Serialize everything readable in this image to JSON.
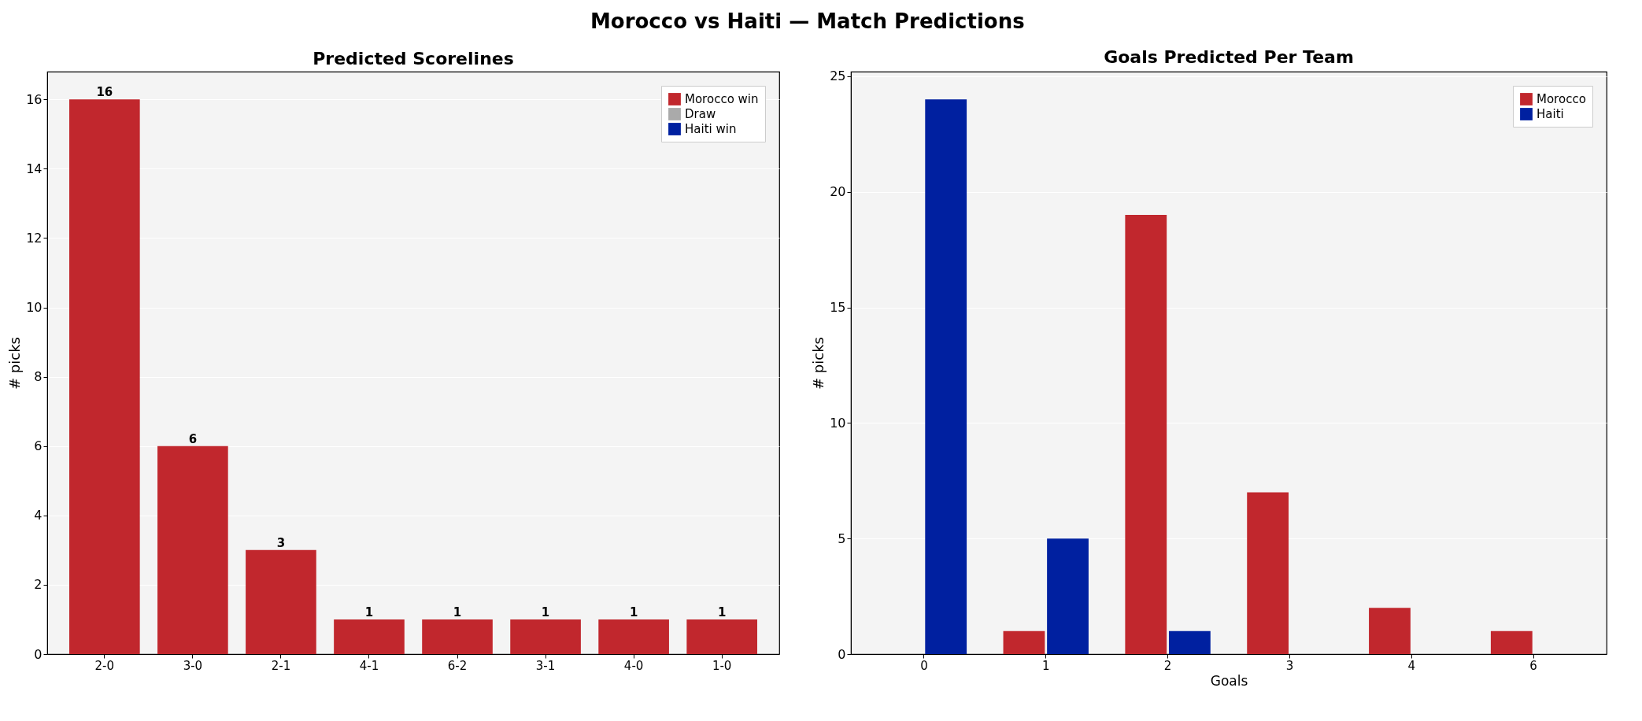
{
  "chart_data": [
    {
      "type": "bar",
      "title": "Predicted Scorelines",
      "ylabel": "# picks",
      "annotations": [
        "Morocco vs Haiti  —  Match Predictions"
      ],
      "categories": [
        "2-0",
        "3-0",
        "2-1",
        "4-1",
        "6-2",
        "3-1",
        "4-0",
        "1-0"
      ],
      "series": [
        {
          "name": "Morocco win",
          "color": "#c1272d",
          "values": [
            16,
            6,
            3,
            1,
            1,
            1,
            1,
            1
          ]
        },
        {
          "name": "Draw",
          "color": "#aaaaaa",
          "values": [
            null,
            null,
            null,
            null,
            null,
            null,
            null,
            null
          ]
        },
        {
          "name": "Haiti win",
          "color": "#0020a0",
          "values": [
            null,
            null,
            null,
            null,
            null,
            null,
            null,
            null
          ]
        }
      ],
      "ylim": [
        0,
        16.8
      ],
      "yticks": [
        0,
        2,
        4,
        6,
        8,
        10,
        12,
        14,
        16
      ],
      "grid": "y",
      "legend": "top right",
      "data_labels": true
    },
    {
      "type": "bar",
      "title": "Goals Predicted Per Team",
      "xlabel": "Goals",
      "ylabel": "# picks",
      "categories": [
        "0",
        "1",
        "2",
        "3",
        "4",
        "6"
      ],
      "series": [
        {
          "name": "Morocco",
          "color": "#c1272d",
          "values": [
            0,
            1,
            19,
            7,
            2,
            1
          ]
        },
        {
          "name": "Haiti",
          "color": "#0020a0",
          "values": [
            24,
            5,
            1,
            0,
            0,
            0
          ]
        }
      ],
      "ylim": [
        0,
        25.2
      ],
      "yticks": [
        0,
        5,
        10,
        15,
        20,
        25
      ],
      "grid": "y",
      "legend": "top right"
    }
  ]
}
